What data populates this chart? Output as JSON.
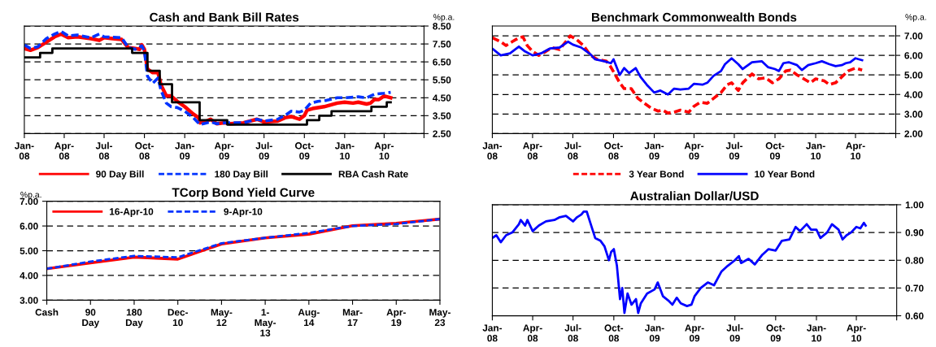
{
  "chart_data": [
    {
      "type": "line",
      "title": "Cash and Bank Bill Rates",
      "ylabel": "%p.a.",
      "xlim": [
        "2008-01-01",
        "2010-07-01"
      ],
      "xticks": [
        {
          "value": "2008-01-01",
          "label": "Jan-\n08"
        },
        {
          "value": "2008-04-01",
          "label": "Apr-\n08"
        },
        {
          "value": "2008-07-01",
          "label": "Jul-\n08"
        },
        {
          "value": "2008-10-01",
          "label": "Oct-\n08"
        },
        {
          "value": "2009-01-01",
          "label": "Jan-\n09"
        },
        {
          "value": "2009-04-01",
          "label": "Apr-\n09"
        },
        {
          "value": "2009-07-01",
          "label": "Jul-\n09"
        },
        {
          "value": "2009-10-01",
          "label": "Oct-\n09"
        },
        {
          "value": "2010-01-01",
          "label": "Jan-\n10"
        },
        {
          "value": "2010-04-01",
          "label": "Apr-\n10"
        },
        {
          "value": "2010-07-01",
          "label": null
        }
      ],
      "ylim": [
        2.5,
        8.5
      ],
      "yticks": [
        {
          "value": 2.5,
          "label": "2.50"
        },
        {
          "value": 3.5,
          "label": "3.50"
        },
        {
          "value": 4.5,
          "label": "4.50"
        },
        {
          "value": 5.5,
          "label": "5.50"
        },
        {
          "value": 6.5,
          "label": "6.50"
        },
        {
          "value": 7.5,
          "label": "7.50"
        },
        {
          "value": 8.5,
          "label": "8.50"
        }
      ],
      "grid": "y",
      "legend": "bottom",
      "series": [
        {
          "name": "90 Day Bill",
          "color": "#ff0000",
          "line_style": "solid",
          "x": [
            "2008-01-01",
            "2008-01-15",
            "2008-02-01",
            "2008-02-20",
            "2008-03-10",
            "2008-03-25",
            "2008-04-10",
            "2008-05-01",
            "2008-06-01",
            "2008-06-20",
            "2008-07-01",
            "2008-07-20",
            "2008-08-10",
            "2008-08-25",
            "2008-09-10",
            "2008-09-20",
            "2008-09-25",
            "2008-10-01",
            "2008-10-08",
            "2008-10-20",
            "2008-11-01",
            "2008-11-08",
            "2008-11-20",
            "2008-12-01",
            "2008-12-15",
            "2009-01-01",
            "2009-01-20",
            "2009-02-01",
            "2009-02-05",
            "2009-02-20",
            "2009-03-01",
            "2009-03-15",
            "2009-04-01",
            "2009-04-15",
            "2009-05-15",
            "2009-06-15",
            "2009-07-01",
            "2009-08-01",
            "2009-08-20",
            "2009-09-01",
            "2009-09-20",
            "2009-10-01",
            "2009-10-07",
            "2009-10-20",
            "2009-11-15",
            "2009-12-15",
            "2010-01-01",
            "2010-01-20",
            "2010-02-01",
            "2010-02-20",
            "2010-03-01",
            "2010-03-10",
            "2010-03-20",
            "2010-04-01",
            "2010-04-16"
          ],
          "values": [
            7.25,
            7.15,
            7.3,
            7.6,
            7.9,
            8.05,
            7.85,
            7.9,
            7.8,
            7.7,
            7.85,
            7.8,
            7.75,
            7.3,
            7.25,
            7.2,
            7.45,
            7.2,
            6.1,
            5.9,
            5.9,
            5.2,
            4.6,
            4.6,
            4.3,
            4.0,
            3.6,
            3.4,
            3.1,
            3.2,
            3.3,
            3.05,
            3.1,
            3.05,
            3.1,
            3.3,
            3.15,
            3.2,
            3.4,
            3.45,
            3.3,
            3.5,
            3.8,
            3.9,
            4.0,
            4.2,
            4.25,
            4.2,
            4.25,
            4.15,
            4.2,
            4.4,
            4.4,
            4.6,
            4.5
          ]
        },
        {
          "name": "180 Day Bill",
          "color": "#0033ff",
          "line_style": "dashed",
          "x": [
            "2008-01-01",
            "2008-01-15",
            "2008-02-01",
            "2008-02-20",
            "2008-03-10",
            "2008-03-25",
            "2008-04-10",
            "2008-05-01",
            "2008-06-01",
            "2008-06-20",
            "2008-07-01",
            "2008-08-10",
            "2008-08-25",
            "2008-09-10",
            "2008-09-25",
            "2008-10-01",
            "2008-10-08",
            "2008-10-20",
            "2008-11-01",
            "2008-11-08",
            "2008-11-20",
            "2008-12-01",
            "2008-12-15",
            "2009-01-01",
            "2009-01-20",
            "2009-02-05",
            "2009-02-20",
            "2009-03-01",
            "2009-03-15",
            "2009-04-01",
            "2009-05-15",
            "2009-06-15",
            "2009-07-01",
            "2009-08-01",
            "2009-08-20",
            "2009-09-01",
            "2009-09-20",
            "2009-10-01",
            "2009-10-15",
            "2009-11-01",
            "2009-11-20",
            "2009-12-15",
            "2010-01-01",
            "2010-02-01",
            "2010-02-20",
            "2010-03-01",
            "2010-03-10",
            "2010-04-01",
            "2010-04-16"
          ],
          "values": [
            7.45,
            7.25,
            7.35,
            7.8,
            8.05,
            8.2,
            7.95,
            8.0,
            7.85,
            8.05,
            7.9,
            7.85,
            7.3,
            7.2,
            7.4,
            7.1,
            5.7,
            5.3,
            5.6,
            4.9,
            4.2,
            4.0,
            3.95,
            3.75,
            3.4,
            3.0,
            3.1,
            3.15,
            3.05,
            3.1,
            3.1,
            3.3,
            3.2,
            3.3,
            3.55,
            3.75,
            3.7,
            3.8,
            4.2,
            4.3,
            4.35,
            4.5,
            4.5,
            4.55,
            4.5,
            4.6,
            4.7,
            4.75,
            4.8
          ]
        },
        {
          "name": "RBA Cash Rate",
          "type": "step",
          "color": "#000000",
          "line_style": "solid",
          "x": [
            "2008-01-01",
            "2008-02-06",
            "2008-03-05",
            "2008-09-03",
            "2008-10-08",
            "2008-11-05",
            "2008-12-03",
            "2009-02-04",
            "2009-04-08",
            "2009-10-07",
            "2009-11-04",
            "2009-12-02",
            "2010-03-03",
            "2010-04-07",
            "2010-04-16"
          ],
          "values": [
            6.75,
            7.0,
            7.25,
            7.0,
            6.0,
            5.25,
            4.25,
            3.25,
            3.0,
            3.25,
            3.5,
            3.75,
            4.0,
            4.25,
            4.25
          ]
        }
      ]
    },
    {
      "type": "line",
      "title": "Benchmark Commonwealth Bonds",
      "ylabel": "%p.a.",
      "xlim": [
        "2008-01-01",
        "2010-07-01"
      ],
      "xticks": [
        {
          "value": "2008-01-01",
          "label": "Jan-\n08"
        },
        {
          "value": "2008-04-01",
          "label": "Apr-\n08"
        },
        {
          "value": "2008-07-01",
          "label": "Jul-\n08"
        },
        {
          "value": "2008-10-01",
          "label": "Oct-\n08"
        },
        {
          "value": "2009-01-01",
          "label": "Jan-\n09"
        },
        {
          "value": "2009-04-01",
          "label": "Apr-\n09"
        },
        {
          "value": "2009-07-01",
          "label": "Jul-\n09"
        },
        {
          "value": "2009-10-01",
          "label": "Oct-\n09"
        },
        {
          "value": "2010-01-01",
          "label": "Jan-\n10"
        },
        {
          "value": "2010-04-01",
          "label": "Apr-\n10"
        },
        {
          "value": "2010-07-01",
          "label": null
        }
      ],
      "ylim": [
        2.0,
        7.5
      ],
      "yticks": [
        {
          "value": 2,
          "label": "2.00"
        },
        {
          "value": 3,
          "label": "3.00"
        },
        {
          "value": 4,
          "label": "4.00"
        },
        {
          "value": 5,
          "label": "5.00"
        },
        {
          "value": 6,
          "label": "6.00"
        },
        {
          "value": 7,
          "label": "7.00"
        }
      ],
      "grid": "y",
      "legend": "bottom",
      "series": [
        {
          "name": "3 Year Bond",
          "color": "#ff0000",
          "line_style": "dashed",
          "x": [
            "2008-01-01",
            "2008-01-20",
            "2008-02-01",
            "2008-02-15",
            "2008-03-01",
            "2008-03-10",
            "2008-03-20",
            "2008-04-01",
            "2008-04-15",
            "2008-05-01",
            "2008-05-15",
            "2008-06-01",
            "2008-06-15",
            "2008-06-25",
            "2008-07-10",
            "2008-07-25",
            "2008-08-10",
            "2008-08-25",
            "2008-09-15",
            "2008-09-25",
            "2008-10-05",
            "2008-10-15",
            "2008-10-25",
            "2008-11-10",
            "2008-11-25",
            "2008-12-10",
            "2008-12-25",
            "2009-01-10",
            "2009-01-20",
            "2009-02-01",
            "2009-02-15",
            "2009-03-01",
            "2009-03-20",
            "2009-04-01",
            "2009-04-15",
            "2009-05-01",
            "2009-05-15",
            "2009-06-01",
            "2009-06-15",
            "2009-06-25",
            "2009-07-10",
            "2009-07-20",
            "2009-08-10",
            "2009-08-25",
            "2009-09-10",
            "2009-09-25",
            "2009-10-10",
            "2009-10-25",
            "2009-11-05",
            "2009-11-20",
            "2009-12-05",
            "2009-12-20",
            "2010-01-01",
            "2010-01-20",
            "2010-02-01",
            "2010-02-15",
            "2010-03-01",
            "2010-03-15",
            "2010-04-01",
            "2010-04-16"
          ],
          "values": [
            6.9,
            6.7,
            6.5,
            6.7,
            6.9,
            6.95,
            6.5,
            6.2,
            6.0,
            6.2,
            6.4,
            6.3,
            6.7,
            7.0,
            6.8,
            6.5,
            6.0,
            5.8,
            5.7,
            5.4,
            5.0,
            4.6,
            4.3,
            4.3,
            3.8,
            3.55,
            3.3,
            3.15,
            3.2,
            3.05,
            3.1,
            3.2,
            3.1,
            3.4,
            3.6,
            3.55,
            3.8,
            4.1,
            4.5,
            4.6,
            4.2,
            4.6,
            5.05,
            4.8,
            4.85,
            4.6,
            4.8,
            5.2,
            5.25,
            5.0,
            4.8,
            4.6,
            4.8,
            4.7,
            4.5,
            4.6,
            4.9,
            5.2,
            5.35,
            5.25
          ]
        },
        {
          "name": "10 Year Bond",
          "color": "#0000ff",
          "line_style": "solid",
          "x": [
            "2008-01-01",
            "2008-01-20",
            "2008-02-10",
            "2008-03-01",
            "2008-03-15",
            "2008-04-01",
            "2008-04-20",
            "2008-05-10",
            "2008-06-01",
            "2008-06-20",
            "2008-07-01",
            "2008-07-20",
            "2008-08-10",
            "2008-08-20",
            "2008-09-10",
            "2008-09-25",
            "2008-10-01",
            "2008-10-15",
            "2008-10-25",
            "2008-11-05",
            "2008-11-20",
            "2008-12-01",
            "2008-12-15",
            "2009-01-01",
            "2009-01-15",
            "2009-02-01",
            "2009-02-15",
            "2009-03-01",
            "2009-03-20",
            "2009-04-01",
            "2009-04-20",
            "2009-05-01",
            "2009-05-15",
            "2009-06-01",
            "2009-06-10",
            "2009-06-25",
            "2009-07-10",
            "2009-07-20",
            "2009-08-10",
            "2009-09-01",
            "2009-09-15",
            "2009-10-01",
            "2009-10-10",
            "2009-10-20",
            "2009-11-01",
            "2009-11-20",
            "2009-12-01",
            "2009-12-15",
            "2010-01-01",
            "2010-01-15",
            "2010-02-01",
            "2010-02-15",
            "2010-03-01",
            "2010-03-10",
            "2010-03-20",
            "2010-04-01",
            "2010-04-16"
          ],
          "values": [
            6.35,
            6.0,
            6.1,
            6.45,
            6.2,
            6.0,
            6.1,
            6.35,
            6.4,
            6.7,
            6.55,
            6.4,
            6.05,
            5.8,
            5.7,
            5.6,
            5.8,
            5.0,
            5.35,
            5.1,
            5.35,
            4.9,
            4.5,
            4.1,
            4.2,
            4.0,
            4.3,
            4.25,
            4.3,
            4.55,
            4.5,
            4.6,
            4.95,
            5.2,
            5.55,
            5.85,
            5.55,
            5.3,
            5.65,
            5.7,
            5.4,
            5.3,
            5.2,
            5.6,
            5.65,
            5.5,
            5.25,
            5.5,
            5.6,
            5.7,
            5.55,
            5.45,
            5.5,
            5.6,
            5.65,
            5.85,
            5.75
          ]
        }
      ]
    },
    {
      "type": "line",
      "title": "TCorp Bond Yield Curve",
      "ylabel": "%p.a.",
      "categories": [
        "Cash",
        "90\nDay",
        "180\nDay",
        "Dec-\n10",
        "May-\n12",
        "1-\nMay-\n13",
        "Aug-\n14",
        "Mar-\n17",
        "Apr-\n19",
        "May-\n23"
      ],
      "ylim": [
        3.0,
        7.0
      ],
      "yticks": [
        {
          "value": 3,
          "label": "3.00"
        },
        {
          "value": 4,
          "label": "4.00"
        },
        {
          "value": 5,
          "label": "5.00"
        },
        {
          "value": 6,
          "label": "6.00"
        },
        {
          "value": 7,
          "label": "7.00"
        }
      ],
      "grid": "y",
      "legend": "top left",
      "series": [
        {
          "name": "16-Apr-10",
          "color": "#ff0000",
          "line_style": "solid",
          "values": [
            4.27,
            4.51,
            4.74,
            4.66,
            5.27,
            5.52,
            5.67,
            6.01,
            6.11,
            6.28
          ]
        },
        {
          "name": "9-Apr-10",
          "color": "#0033ff",
          "line_style": "dashed",
          "values": [
            4.27,
            4.56,
            4.79,
            4.73,
            5.3,
            5.52,
            5.72,
            6.0,
            6.08,
            6.28
          ]
        }
      ]
    },
    {
      "type": "line",
      "title": "Australian Dollar/USD",
      "xlim": [
        "2008-01-01",
        "2010-07-01"
      ],
      "xticks": [
        {
          "value": "2008-01-01",
          "label": "Jan-\n08"
        },
        {
          "value": "2008-04-01",
          "label": "Apr-\n08"
        },
        {
          "value": "2008-07-01",
          "label": "Jul-\n08"
        },
        {
          "value": "2008-10-01",
          "label": "Oct-\n08"
        },
        {
          "value": "2009-01-01",
          "label": "Jan-\n09"
        },
        {
          "value": "2009-04-01",
          "label": "Apr-\n09"
        },
        {
          "value": "2009-07-01",
          "label": "Jul-\n09"
        },
        {
          "value": "2009-10-01",
          "label": "Oct-\n09"
        },
        {
          "value": "2010-01-01",
          "label": "Jan-\n10"
        },
        {
          "value": "2010-04-01",
          "label": "Apr-\n10"
        },
        {
          "value": "2010-07-01",
          "label": null
        }
      ],
      "ylim": [
        0.6,
        1.0
      ],
      "yticks": [
        {
          "value": 0.6,
          "label": "0.60"
        },
        {
          "value": 0.7,
          "label": "0.70"
        },
        {
          "value": 0.8,
          "label": "0.80"
        },
        {
          "value": 0.9,
          "label": "0.90"
        },
        {
          "value": 1.0,
          "label": "1.00"
        }
      ],
      "grid": "y",
      "series": [
        {
          "color": "#0000ff",
          "line_style": "solid",
          "x": [
            "2008-01-01",
            "2008-01-10",
            "2008-01-20",
            "2008-02-01",
            "2008-02-15",
            "2008-03-01",
            "2008-03-05",
            "2008-03-15",
            "2008-03-20",
            "2008-04-01",
            "2008-04-15",
            "2008-05-01",
            "2008-05-20",
            "2008-06-01",
            "2008-06-15",
            "2008-07-01",
            "2008-07-10",
            "2008-07-20",
            "2008-07-25",
            "2008-08-01",
            "2008-08-10",
            "2008-08-20",
            "2008-09-01",
            "2008-09-10",
            "2008-09-20",
            "2008-09-25",
            "2008-10-01",
            "2008-10-08",
            "2008-10-15",
            "2008-10-20",
            "2008-10-25",
            "2008-11-01",
            "2008-11-10",
            "2008-11-20",
            "2008-11-25",
            "2008-12-01",
            "2008-12-15",
            "2009-01-01",
            "2009-01-08",
            "2009-01-20",
            "2009-02-01",
            "2009-02-10",
            "2009-02-20",
            "2009-03-01",
            "2009-03-15",
            "2009-03-25",
            "2009-04-01",
            "2009-04-15",
            "2009-05-01",
            "2009-05-15",
            "2009-06-01",
            "2009-06-15",
            "2009-07-01",
            "2009-07-10",
            "2009-07-15",
            "2009-08-01",
            "2009-08-15",
            "2009-09-01",
            "2009-09-15",
            "2009-10-01",
            "2009-10-15",
            "2009-11-01",
            "2009-11-15",
            "2009-11-25",
            "2009-12-10",
            "2009-12-20",
            "2010-01-01",
            "2010-01-10",
            "2010-01-25",
            "2010-02-05",
            "2010-02-20",
            "2010-03-01",
            "2010-03-10",
            "2010-03-20",
            "2010-04-01",
            "2010-04-10",
            "2010-04-18",
            "2010-04-22"
          ],
          "values": [
            0.88,
            0.89,
            0.865,
            0.89,
            0.9,
            0.93,
            0.945,
            0.925,
            0.945,
            0.905,
            0.925,
            0.94,
            0.945,
            0.955,
            0.96,
            0.94,
            0.955,
            0.965,
            0.975,
            0.975,
            0.93,
            0.88,
            0.87,
            0.85,
            0.8,
            0.83,
            0.84,
            0.78,
            0.66,
            0.7,
            0.61,
            0.68,
            0.64,
            0.66,
            0.61,
            0.645,
            0.68,
            0.695,
            0.72,
            0.67,
            0.655,
            0.64,
            0.665,
            0.645,
            0.635,
            0.64,
            0.67,
            0.7,
            0.72,
            0.71,
            0.76,
            0.78,
            0.8,
            0.815,
            0.79,
            0.805,
            0.785,
            0.82,
            0.84,
            0.835,
            0.87,
            0.875,
            0.92,
            0.905,
            0.93,
            0.91,
            0.91,
            0.88,
            0.9,
            0.93,
            0.91,
            0.875,
            0.89,
            0.9,
            0.92,
            0.915,
            0.935,
            0.925
          ]
        }
      ]
    }
  ]
}
